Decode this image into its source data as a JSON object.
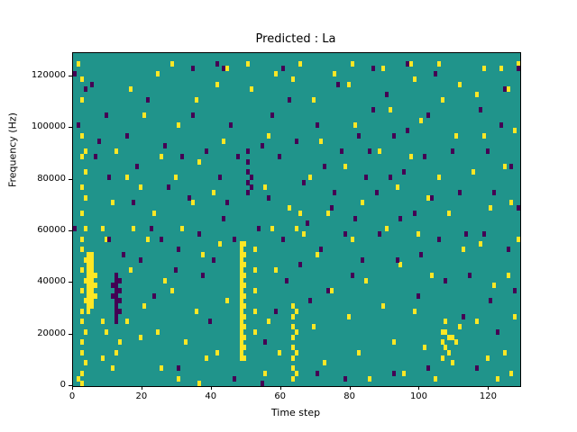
{
  "title": "Predicted : La",
  "chart_data": {
    "type": "heatmap",
    "title": "Predicted : La",
    "xlabel": "Time step",
    "ylabel": "Frequency (Hz)",
    "xlim": [
      0,
      129
    ],
    "ylim": [
      0,
      129000
    ],
    "x_ticks": [
      0,
      20,
      40,
      60,
      80,
      100,
      120
    ],
    "y_ticks": [
      0,
      20000,
      40000,
      60000,
      80000,
      100000,
      120000
    ],
    "grid": false,
    "legend": "none",
    "cell": {
      "width_steps": 1,
      "height_hz": 2000
    },
    "colors": {
      "background": "#20948b",
      "high": "#fde725",
      "low": "#440154"
    },
    "points_high": [
      [
        1,
        62
      ],
      [
        2,
        59
      ],
      [
        2,
        55
      ],
      [
        2,
        48
      ],
      [
        3,
        45
      ],
      [
        2,
        44
      ],
      [
        3,
        41
      ],
      [
        2,
        38
      ],
      [
        3,
        36
      ],
      [
        2,
        33
      ],
      [
        3,
        30
      ],
      [
        2,
        28
      ],
      [
        2,
        26
      ],
      [
        3,
        24
      ],
      [
        2,
        22
      ],
      [
        3,
        20
      ],
      [
        2,
        18
      ],
      [
        3,
        16
      ],
      [
        2,
        14
      ],
      [
        2,
        12
      ],
      [
        3,
        10
      ],
      [
        2,
        8
      ],
      [
        2,
        6
      ],
      [
        3,
        4
      ],
      [
        2,
        2
      ],
      [
        2,
        0
      ],
      [
        1,
        1
      ],
      [
        4,
        25
      ],
      [
        5,
        25
      ],
      [
        4,
        24
      ],
      [
        5,
        24
      ],
      [
        4,
        23
      ],
      [
        5,
        23
      ],
      [
        4,
        22
      ],
      [
        5,
        22
      ],
      [
        4,
        21
      ],
      [
        5,
        21
      ],
      [
        4,
        20
      ],
      [
        5,
        20
      ],
      [
        4,
        19
      ],
      [
        5,
        19
      ],
      [
        4,
        18
      ],
      [
        5,
        18
      ],
      [
        4,
        17
      ],
      [
        5,
        17
      ],
      [
        4,
        16
      ],
      [
        5,
        16
      ],
      [
        4,
        15
      ],
      [
        5,
        15
      ],
      [
        4,
        14
      ],
      [
        6,
        21
      ],
      [
        6,
        19
      ],
      [
        6,
        17
      ],
      [
        8,
        30
      ],
      [
        9,
        28
      ],
      [
        8,
        12
      ],
      [
        9,
        10
      ],
      [
        8,
        5
      ],
      [
        12,
        45
      ],
      [
        11,
        35
      ],
      [
        13,
        8
      ],
      [
        12,
        6
      ],
      [
        11,
        3
      ],
      [
        16,
        57
      ],
      [
        15,
        40
      ],
      [
        17,
        30
      ],
      [
        16,
        22
      ],
      [
        15,
        12
      ],
      [
        20,
        52
      ],
      [
        19,
        38
      ],
      [
        21,
        28
      ],
      [
        20,
        15
      ],
      [
        19,
        9
      ],
      [
        24,
        60
      ],
      [
        25,
        44
      ],
      [
        23,
        33
      ],
      [
        26,
        20
      ],
      [
        24,
        10
      ],
      [
        25,
        3
      ],
      [
        28,
        62
      ],
      [
        30,
        50
      ],
      [
        29,
        40
      ],
      [
        31,
        30
      ],
      [
        28,
        18
      ],
      [
        32,
        8
      ],
      [
        30,
        1
      ],
      [
        35,
        55
      ],
      [
        36,
        43
      ],
      [
        34,
        35
      ],
      [
        37,
        25
      ],
      [
        35,
        14
      ],
      [
        38,
        5
      ],
      [
        36,
        0
      ],
      [
        41,
        58
      ],
      [
        43,
        47
      ],
      [
        40,
        37
      ],
      [
        42,
        27
      ],
      [
        44,
        16
      ],
      [
        41,
        6
      ],
      [
        48,
        27
      ],
      [
        48,
        26
      ],
      [
        48,
        25
      ],
      [
        48,
        24
      ],
      [
        48,
        23
      ],
      [
        48,
        22
      ],
      [
        48,
        21
      ],
      [
        48,
        20
      ],
      [
        48,
        19
      ],
      [
        48,
        18
      ],
      [
        48,
        17
      ],
      [
        48,
        16
      ],
      [
        48,
        15
      ],
      [
        48,
        14
      ],
      [
        48,
        13
      ],
      [
        48,
        12
      ],
      [
        48,
        11
      ],
      [
        48,
        10
      ],
      [
        48,
        9
      ],
      [
        48,
        8
      ],
      [
        48,
        7
      ],
      [
        48,
        6
      ],
      [
        48,
        5
      ],
      [
        49,
        27
      ],
      [
        49,
        25
      ],
      [
        49,
        23
      ],
      [
        49,
        21
      ],
      [
        49,
        19
      ],
      [
        49,
        17
      ],
      [
        49,
        15
      ],
      [
        49,
        13
      ],
      [
        49,
        11
      ],
      [
        49,
        9
      ],
      [
        49,
        7
      ],
      [
        49,
        5
      ],
      [
        52,
        26
      ],
      [
        52,
        22
      ],
      [
        52,
        18
      ],
      [
        52,
        14
      ],
      [
        52,
        10
      ],
      [
        50,
        62
      ],
      [
        44,
        61
      ],
      [
        58,
        60
      ],
      [
        51,
        57
      ],
      [
        56,
        48
      ],
      [
        55,
        38
      ],
      [
        57,
        30
      ],
      [
        58,
        22
      ],
      [
        56,
        12
      ],
      [
        59,
        6
      ],
      [
        55,
        2
      ],
      [
        63,
        15
      ],
      [
        63,
        13
      ],
      [
        63,
        11
      ],
      [
        63,
        9
      ],
      [
        63,
        7
      ],
      [
        63,
        5
      ],
      [
        63,
        3
      ],
      [
        63,
        1
      ],
      [
        64,
        14
      ],
      [
        64,
        10
      ],
      [
        64,
        6
      ],
      [
        64,
        2
      ],
      [
        65,
        33
      ],
      [
        66,
        29
      ],
      [
        62,
        34
      ],
      [
        64,
        30
      ],
      [
        65,
        62
      ],
      [
        63,
        59
      ],
      [
        69,
        55
      ],
      [
        71,
        47
      ],
      [
        68,
        40
      ],
      [
        73,
        33
      ],
      [
        70,
        25
      ],
      [
        74,
        18
      ],
      [
        69,
        11
      ],
      [
        72,
        4
      ],
      [
        75,
        60
      ],
      [
        79,
        58
      ],
      [
        81,
        50
      ],
      [
        78,
        42
      ],
      [
        83,
        35
      ],
      [
        80,
        28
      ],
      [
        84,
        20
      ],
      [
        79,
        13
      ],
      [
        82,
        6
      ],
      [
        85,
        1
      ],
      [
        80,
        62
      ],
      [
        89,
        61
      ],
      [
        91,
        53
      ],
      [
        88,
        45
      ],
      [
        93,
        38
      ],
      [
        90,
        30
      ],
      [
        94,
        23
      ],
      [
        89,
        15
      ],
      [
        92,
        8
      ],
      [
        95,
        2
      ],
      [
        98,
        59
      ],
      [
        100,
        51
      ],
      [
        97,
        44
      ],
      [
        102,
        36
      ],
      [
        99,
        29
      ],
      [
        103,
        21
      ],
      [
        98,
        14
      ],
      [
        101,
        7
      ],
      [
        104,
        1
      ],
      [
        97,
        62
      ],
      [
        106,
        10
      ],
      [
        107,
        10
      ],
      [
        108,
        9
      ],
      [
        109,
        9
      ],
      [
        106,
        8
      ],
      [
        107,
        7
      ],
      [
        110,
        8
      ],
      [
        108,
        6
      ],
      [
        106,
        5
      ],
      [
        109,
        4
      ],
      [
        107,
        12
      ],
      [
        111,
        11
      ],
      [
        105,
        40
      ],
      [
        108,
        33
      ],
      [
        112,
        26
      ],
      [
        110,
        48
      ],
      [
        106,
        55
      ],
      [
        111,
        58
      ],
      [
        105,
        62
      ],
      [
        116,
        56
      ],
      [
        118,
        48
      ],
      [
        115,
        41
      ],
      [
        120,
        34
      ],
      [
        117,
        27
      ],
      [
        121,
        19
      ],
      [
        116,
        12
      ],
      [
        119,
        5
      ],
      [
        122,
        1
      ],
      [
        118,
        61
      ],
      [
        125,
        57
      ],
      [
        127,
        49
      ],
      [
        124,
        42
      ],
      [
        126,
        35
      ],
      [
        128,
        28
      ],
      [
        125,
        21
      ],
      [
        127,
        13
      ],
      [
        124,
        6
      ],
      [
        126,
        2
      ],
      [
        128,
        62
      ],
      [
        123,
        61
      ]
    ],
    "points_low": [
      [
        0,
        60
      ],
      [
        5,
        58
      ],
      [
        9,
        52
      ],
      [
        7,
        47
      ],
      [
        6,
        44
      ],
      [
        10,
        40
      ],
      [
        12,
        21
      ],
      [
        12,
        20
      ],
      [
        12,
        19
      ],
      [
        12,
        18
      ],
      [
        12,
        17
      ],
      [
        12,
        16
      ],
      [
        12,
        15
      ],
      [
        12,
        14
      ],
      [
        12,
        13
      ],
      [
        12,
        12
      ],
      [
        13,
        20
      ],
      [
        13,
        18
      ],
      [
        13,
        16
      ],
      [
        13,
        14
      ],
      [
        11,
        19
      ],
      [
        11,
        17
      ],
      [
        14,
        25
      ],
      [
        10,
        28
      ],
      [
        15,
        48
      ],
      [
        18,
        42
      ],
      [
        17,
        35
      ],
      [
        21,
        55
      ],
      [
        22,
        30
      ],
      [
        19,
        24
      ],
      [
        23,
        17
      ],
      [
        26,
        46
      ],
      [
        27,
        38
      ],
      [
        25,
        28
      ],
      [
        29,
        22
      ],
      [
        31,
        44
      ],
      [
        33,
        36
      ],
      [
        30,
        26
      ],
      [
        34,
        52
      ],
      [
        36,
        29
      ],
      [
        38,
        45
      ],
      [
        37,
        21
      ],
      [
        39,
        12
      ],
      [
        42,
        40
      ],
      [
        43,
        32
      ],
      [
        40,
        24
      ],
      [
        45,
        50
      ],
      [
        46,
        28
      ],
      [
        44,
        35
      ],
      [
        41,
        62
      ],
      [
        43,
        61
      ],
      [
        47,
        44
      ],
      [
        50,
        45
      ],
      [
        50,
        43
      ],
      [
        50,
        41
      ],
      [
        50,
        39
      ],
      [
        50,
        37
      ],
      [
        51,
        40
      ],
      [
        51,
        38
      ],
      [
        53,
        30
      ],
      [
        54,
        46
      ],
      [
        57,
        52
      ],
      [
        59,
        44
      ],
      [
        56,
        36
      ],
      [
        60,
        28
      ],
      [
        61,
        20
      ],
      [
        58,
        14
      ],
      [
        55,
        8
      ],
      [
        62,
        55
      ],
      [
        64,
        47
      ],
      [
        66,
        39
      ],
      [
        67,
        31
      ],
      [
        65,
        23
      ],
      [
        68,
        16
      ],
      [
        70,
        50
      ],
      [
        72,
        42
      ],
      [
        74,
        34
      ],
      [
        71,
        26
      ],
      [
        73,
        18
      ],
      [
        76,
        58
      ],
      [
        77,
        45
      ],
      [
        75,
        37
      ],
      [
        78,
        29
      ],
      [
        80,
        21
      ],
      [
        82,
        48
      ],
      [
        84,
        40
      ],
      [
        81,
        32
      ],
      [
        83,
        24
      ],
      [
        86,
        61
      ],
      [
        86,
        53
      ],
      [
        85,
        45
      ],
      [
        87,
        37
      ],
      [
        88,
        29
      ],
      [
        90,
        56
      ],
      [
        92,
        48
      ],
      [
        91,
        40
      ],
      [
        94,
        32
      ],
      [
        93,
        24
      ],
      [
        96,
        49
      ],
      [
        95,
        41
      ],
      [
        98,
        33
      ],
      [
        100,
        25
      ],
      [
        99,
        17
      ],
      [
        104,
        60
      ],
      [
        102,
        52
      ],
      [
        101,
        44
      ],
      [
        103,
        36
      ],
      [
        105,
        28
      ],
      [
        107,
        20
      ],
      [
        109,
        45
      ],
      [
        111,
        37
      ],
      [
        113,
        29
      ],
      [
        114,
        21
      ],
      [
        112,
        13
      ],
      [
        117,
        53
      ],
      [
        119,
        45
      ],
      [
        121,
        37
      ],
      [
        118,
        29
      ],
      [
        120,
        16
      ],
      [
        123,
        50
      ],
      [
        126,
        42
      ],
      [
        128,
        34
      ],
      [
        125,
        26
      ],
      [
        127,
        18
      ],
      [
        122,
        10
      ],
      [
        124,
        57
      ],
      [
        128,
        61
      ],
      [
        0,
        30
      ],
      [
        1,
        50
      ],
      [
        3,
        57
      ],
      [
        116,
        3
      ],
      [
        92,
        2
      ],
      [
        70,
        2
      ],
      [
        46,
        1
      ],
      [
        30,
        3
      ],
      [
        54,
        0
      ],
      [
        78,
        1
      ],
      [
        102,
        3
      ],
      [
        34,
        61
      ],
      [
        60,
        61
      ],
      [
        96,
        62
      ]
    ]
  }
}
